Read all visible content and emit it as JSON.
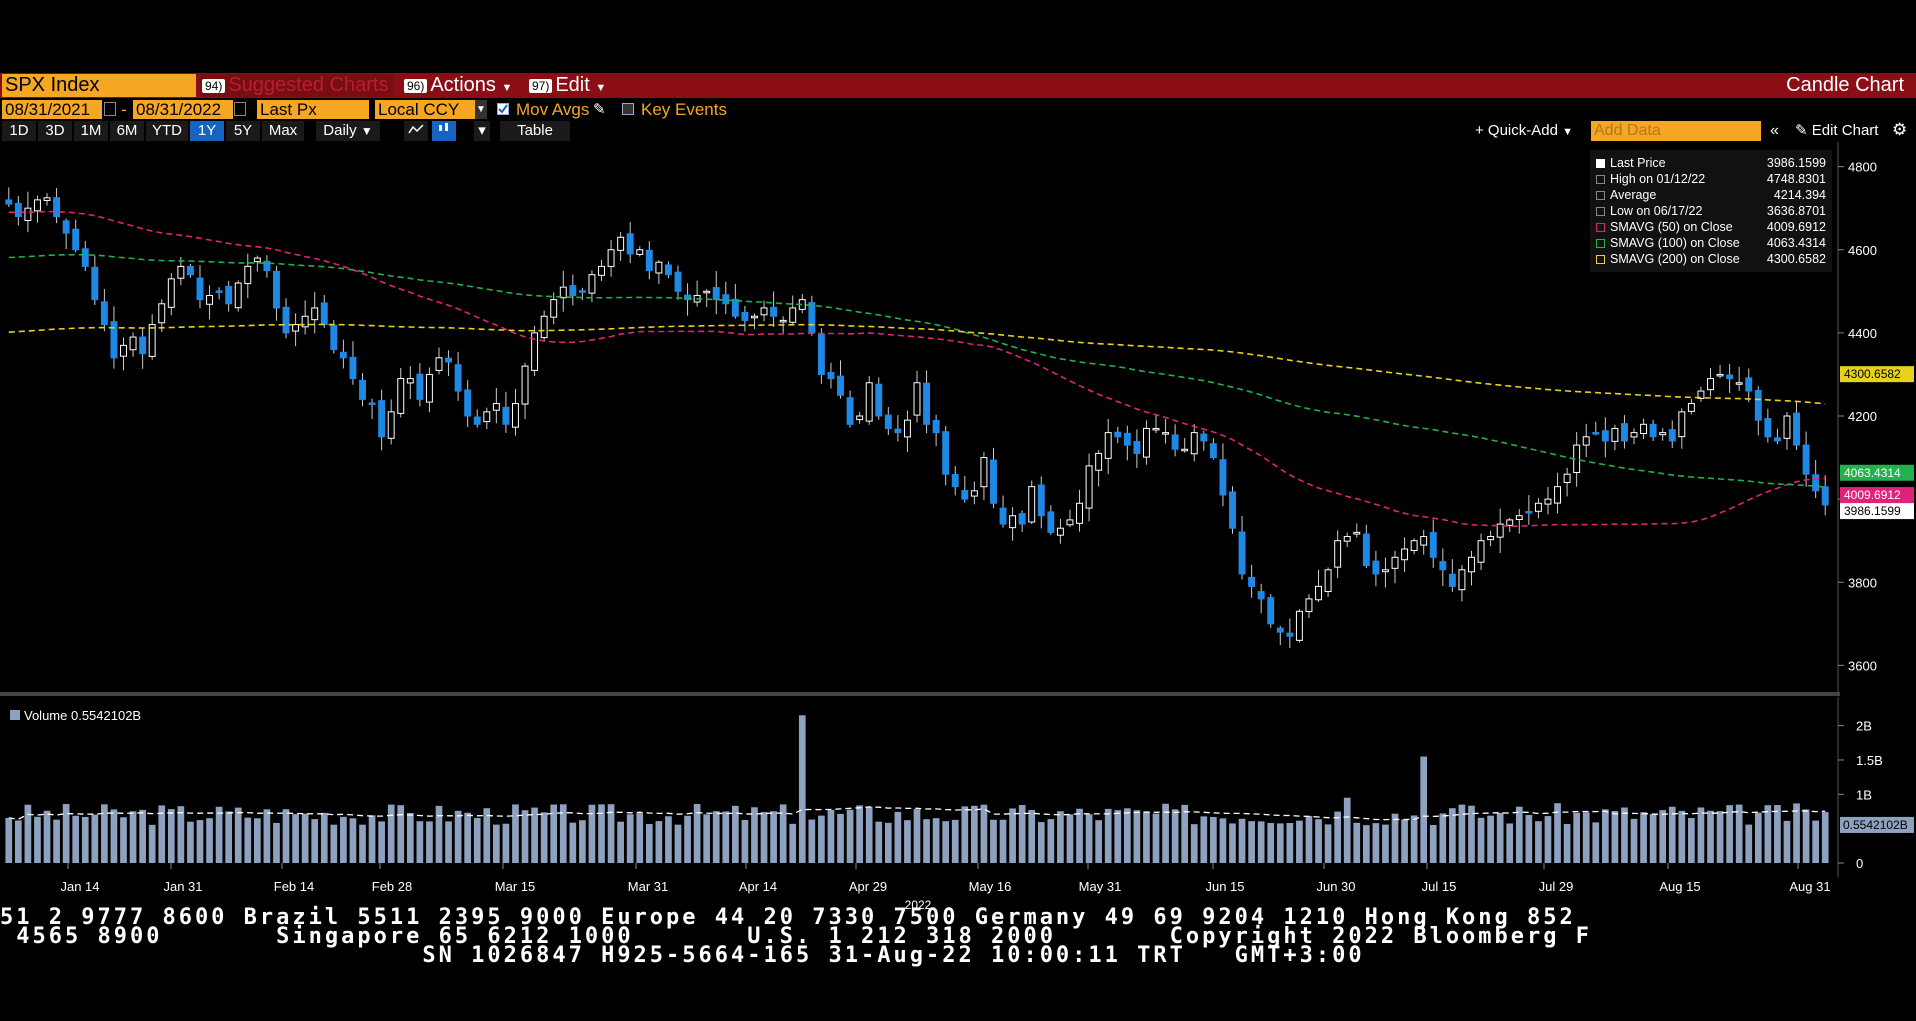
{
  "toolbar": {
    "ticker": "SPX Index",
    "suggested_num": "94)",
    "suggested_label": "Suggested Charts",
    "actions_num": "96)",
    "actions_label": "Actions",
    "edit_num": "97)",
    "edit_label": "Edit",
    "chart_type": "Candle Chart"
  },
  "controls": {
    "start_date": "08/31/2021",
    "end_date": "08/31/2022",
    "date_sep": "-",
    "price_field": "Last Px",
    "currency": "Local CCY",
    "mov_avgs_label": "Mov Avgs",
    "key_events_label": "Key Events",
    "periods": [
      "1D",
      "3D",
      "1M",
      "6M",
      "YTD",
      "1Y",
      "5Y",
      "Max"
    ],
    "selected_period": "1Y",
    "frequency": "Daily",
    "table_label": "Table",
    "quick_add_label": "+ Quick-Add",
    "add_data_placeholder": "Add Data",
    "edit_chart_label": "Edit Chart"
  },
  "legend": {
    "rows": [
      {
        "label": "Last Price",
        "value": "3986.1599"
      },
      {
        "label": "High on 01/12/22",
        "value": "4748.8301"
      },
      {
        "label": "Average",
        "value": "4214.394"
      },
      {
        "label": "Low on 06/17/22",
        "value": "3636.8701"
      },
      {
        "label": "SMAVG (50)  on Close",
        "value": "4009.6912"
      },
      {
        "label": "SMAVG (100)  on Close",
        "value": "4063.4314"
      },
      {
        "label": "SMAVG (200)  on Close",
        "value": "4300.6582"
      }
    ],
    "volume_label": "Volume  0.5542102B"
  },
  "badges": {
    "sma200": "4300.6582",
    "sma100": "4063.4314",
    "sma50": "4009.6912",
    "last": "3986.1599",
    "volume": "0.5542102B"
  },
  "colors": {
    "up": "#ffffff",
    "down": "#1e88e5",
    "sma50": "#e0227a",
    "sma100": "#22b14c",
    "sma200": "#e6d21e",
    "volume": "#8ea2c0",
    "brand_bar": "#8b0e17",
    "accent": "#f5a623"
  },
  "chart_data": {
    "type": "candlestick",
    "x_tick_labels": [
      "Jan 14",
      "Jan 31",
      "Feb 14",
      "Feb 28",
      "Mar 15",
      "Mar 31",
      "Apr 14",
      "Apr 29",
      "May 16",
      "May 31",
      "Jun 15",
      "Jun 30",
      "Jul 15",
      "Jul 29",
      "Aug 15",
      "Aug 31"
    ],
    "x_year_label": "2022",
    "y_ticks": [
      3600,
      3800,
      4000,
      4200,
      4400,
      4600,
      4800
    ],
    "ylim": [
      3560,
      4840
    ],
    "volume_ticks": [
      "2B",
      "1.5B",
      "1B",
      "0"
    ],
    "volume_tick_values": [
      2,
      1.5,
      1,
      0
    ],
    "volume_ylim": [
      0,
      2.3
    ],
    "candles_close": [
      4710,
      4680,
      4700,
      4720,
      4725,
      4680,
      4640,
      4600,
      4560,
      4480,
      4420,
      4340,
      4370,
      4390,
      4350,
      4420,
      4470,
      4530,
      4560,
      4540,
      4480,
      4490,
      4500,
      4470,
      4520,
      4560,
      4580,
      4550,
      4460,
      4400,
      4420,
      4440,
      4460,
      4420,
      4360,
      4340,
      4290,
      4240,
      4230,
      4150,
      4210,
      4290,
      4290,
      4240,
      4300,
      4340,
      4330,
      4260,
      4200,
      4180,
      4210,
      4230,
      4180,
      4230,
      4320,
      4400,
      4440,
      4480,
      4510,
      4490,
      4500,
      4540,
      4560,
      4600,
      4630,
      4590,
      4600,
      4550,
      4570,
      4540,
      4500,
      4480,
      4490,
      4500,
      4480,
      4470,
      4440,
      4430,
      4440,
      4460,
      4440,
      4430,
      4460,
      4480,
      4400,
      4300,
      4290,
      4250,
      4180,
      4200,
      4280,
      4200,
      4170,
      4160,
      4190,
      4280,
      4180,
      4160,
      4060,
      4030,
      4000,
      4020,
      4100,
      3990,
      3940,
      3960,
      3940,
      4030,
      3960,
      3920,
      3930,
      3950,
      3990,
      4080,
      4110,
      4160,
      4150,
      4130,
      4110,
      4170,
      4170,
      4160,
      4120,
      4120,
      4160,
      4140,
      4100,
      4010,
      3930,
      3820,
      3790,
      3760,
      3700,
      3680,
      3670,
      3730,
      3760,
      3790,
      3830,
      3900,
      3910,
      3920,
      3840,
      3820,
      3830,
      3860,
      3880,
      3900,
      3910,
      3860,
      3830,
      3790,
      3830,
      3860,
      3900,
      3910,
      3940,
      3950,
      3960,
      3970,
      3990,
      4000,
      4030,
      4060,
      4130,
      4150,
      4160,
      4140,
      4170,
      4140,
      4160,
      4180,
      4150,
      4160,
      4140,
      4210,
      4230,
      4260,
      4290,
      4300,
      4290,
      4280,
      4260,
      4190,
      4150,
      4140,
      4200,
      4130,
      4060,
      4020,
      3986
    ]
  }
}
